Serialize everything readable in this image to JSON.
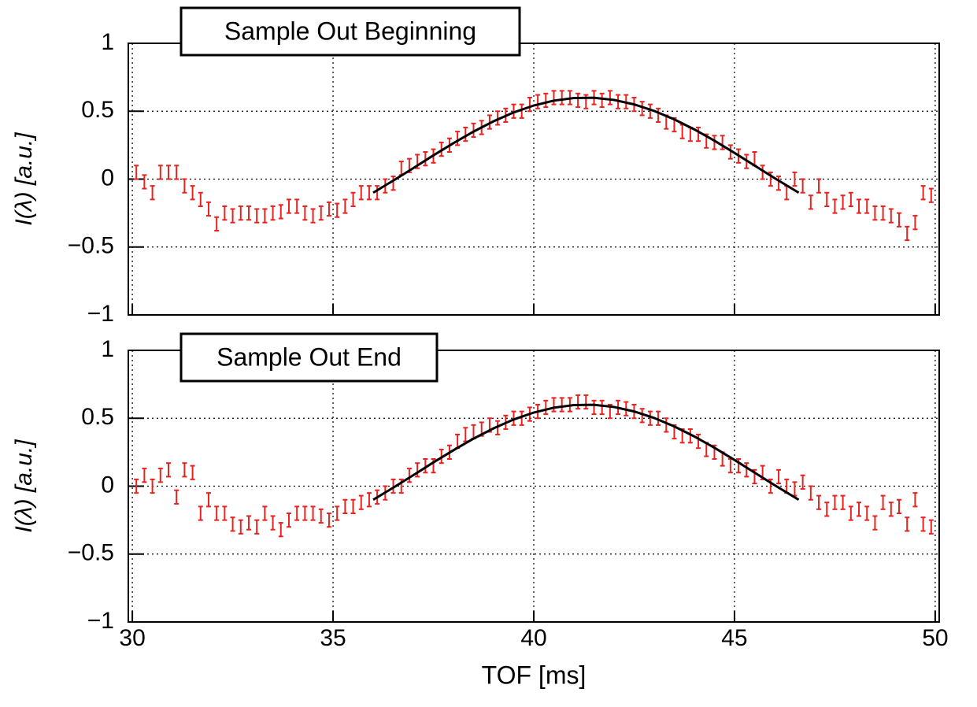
{
  "chart_data": [
    {
      "type": "scatter",
      "title": "Sample Out Beginning",
      "ylabel": "I(λ)  [a.u.]",
      "xlim": [
        29.9,
        50.1
      ],
      "ylim": [
        -1,
        1
      ],
      "xticks": [
        30,
        35,
        40,
        45,
        50
      ],
      "yticks": [
        {
          "value": -1,
          "label": "−1"
        },
        {
          "value": -0.5,
          "label": "−0.5"
        },
        0,
        0.5,
        1
      ],
      "grid": true,
      "series": [
        {
          "style": "errorbar",
          "color": "#e8231f",
          "error": 0.05,
          "x": [
            30.1,
            30.3,
            30.5,
            30.7,
            30.9,
            31.1,
            31.3,
            31.5,
            31.7,
            31.9,
            32.1,
            32.3,
            32.5,
            32.7,
            32.9,
            33.1,
            33.3,
            33.5,
            33.7,
            33.9,
            34.1,
            34.3,
            34.5,
            34.7,
            34.9,
            35.1,
            35.3,
            35.5,
            35.7,
            35.9,
            36.1,
            36.3,
            36.5,
            36.7,
            36.9,
            37.1,
            37.3,
            37.5,
            37.7,
            37.9,
            38.1,
            38.3,
            38.5,
            38.7,
            38.9,
            39.1,
            39.3,
            39.5,
            39.7,
            39.9,
            40.1,
            40.3,
            40.5,
            40.7,
            40.9,
            41.1,
            41.3,
            41.5,
            41.7,
            41.9,
            42.1,
            42.3,
            42.5,
            42.7,
            42.9,
            43.1,
            43.3,
            43.5,
            43.7,
            43.9,
            44.1,
            44.3,
            44.5,
            44.7,
            44.9,
            45.1,
            45.3,
            45.5,
            45.7,
            45.9,
            46.1,
            46.3,
            46.5,
            46.7,
            46.9,
            47.1,
            47.3,
            47.5,
            47.7,
            47.9,
            48.1,
            48.3,
            48.5,
            48.7,
            48.9,
            49.1,
            49.3,
            49.5,
            49.7,
            49.9
          ],
          "values": [
            0.05,
            -0.02,
            -0.1,
            0.05,
            0.05,
            0.05,
            -0.05,
            -0.1,
            -0.15,
            -0.22,
            -0.33,
            -0.25,
            -0.27,
            -0.25,
            -0.25,
            -0.27,
            -0.27,
            -0.25,
            -0.24,
            -0.2,
            -0.2,
            -0.25,
            -0.27,
            -0.25,
            -0.22,
            -0.23,
            -0.2,
            -0.15,
            -0.1,
            -0.1,
            -0.1,
            -0.05,
            -0.03,
            0.08,
            0.1,
            0.13,
            0.15,
            0.17,
            0.22,
            0.25,
            0.3,
            0.33,
            0.36,
            0.38,
            0.42,
            0.45,
            0.47,
            0.5,
            0.5,
            0.55,
            0.57,
            0.58,
            0.6,
            0.6,
            0.6,
            0.58,
            0.57,
            0.6,
            0.58,
            0.6,
            0.57,
            0.57,
            0.55,
            0.52,
            0.5,
            0.47,
            0.42,
            0.4,
            0.35,
            0.33,
            0.33,
            0.28,
            0.27,
            0.27,
            0.2,
            0.17,
            0.13,
            0.15,
            0.05,
            0.0,
            -0.03,
            -0.1,
            0.0,
            -0.05,
            -0.17,
            -0.05,
            -0.15,
            -0.2,
            -0.17,
            -0.15,
            -0.2,
            -0.2,
            -0.25,
            -0.25,
            -0.27,
            -0.3,
            -0.4,
            -0.32,
            -0.1,
            -0.12
          ]
        },
        {
          "style": "line",
          "color": "#000000",
          "x": [
            36,
            36.5,
            37,
            37.5,
            38,
            38.5,
            39,
            39.5,
            40,
            40.5,
            41,
            41.5,
            42,
            42.5,
            43,
            43.5,
            44,
            44.5,
            45,
            45.5,
            46,
            46.6
          ],
          "values": [
            -0.1,
            -0.011,
            0.081,
            0.175,
            0.265,
            0.35,
            0.426,
            0.491,
            0.542,
            0.578,
            0.597,
            0.599,
            0.583,
            0.55,
            0.502,
            0.44,
            0.366,
            0.283,
            0.193,
            0.1,
            0.007,
            -0.1
          ]
        }
      ]
    },
    {
      "type": "scatter",
      "title": "Sample Out End",
      "ylabel": "I(λ)  [a.u.]",
      "xlabel": "TOF [ms]",
      "xlim": [
        29.9,
        50.1
      ],
      "ylim": [
        -1,
        1
      ],
      "xticks": [
        30,
        35,
        40,
        45,
        50
      ],
      "xtick_labels": true,
      "yticks": [
        {
          "value": -1,
          "label": "−1"
        },
        {
          "value": -0.5,
          "label": "−0.5"
        },
        0,
        0.5,
        1
      ],
      "grid": true,
      "series": [
        {
          "style": "errorbar",
          "color": "#e8231f",
          "error": 0.05,
          "x": [
            30.1,
            30.3,
            30.5,
            30.7,
            30.9,
            31.1,
            31.3,
            31.5,
            31.7,
            31.9,
            32.1,
            32.3,
            32.5,
            32.7,
            32.9,
            33.1,
            33.3,
            33.5,
            33.7,
            33.9,
            34.1,
            34.3,
            34.5,
            34.7,
            34.9,
            35.1,
            35.3,
            35.5,
            35.7,
            35.9,
            36.1,
            36.3,
            36.5,
            36.7,
            36.9,
            37.1,
            37.3,
            37.5,
            37.7,
            37.9,
            38.1,
            38.3,
            38.5,
            38.7,
            38.9,
            39.1,
            39.3,
            39.5,
            39.7,
            39.9,
            40.1,
            40.3,
            40.5,
            40.7,
            40.9,
            41.1,
            41.3,
            41.5,
            41.7,
            41.9,
            42.1,
            42.3,
            42.5,
            42.7,
            42.9,
            43.1,
            43.3,
            43.5,
            43.7,
            43.9,
            44.1,
            44.3,
            44.5,
            44.7,
            44.9,
            45.1,
            45.3,
            45.5,
            45.7,
            45.9,
            46.1,
            46.3,
            46.5,
            46.7,
            46.9,
            47.1,
            47.3,
            47.5,
            47.7,
            47.9,
            48.1,
            48.3,
            48.5,
            48.7,
            48.9,
            49.1,
            49.3,
            49.5,
            49.7,
            49.9
          ],
          "values": [
            0.0,
            0.08,
            0.0,
            0.08,
            0.12,
            -0.08,
            0.12,
            0.1,
            -0.2,
            -0.1,
            -0.2,
            -0.2,
            -0.28,
            -0.3,
            -0.27,
            -0.3,
            -0.2,
            -0.27,
            -0.32,
            -0.25,
            -0.2,
            -0.2,
            -0.2,
            -0.22,
            -0.25,
            -0.2,
            -0.15,
            -0.15,
            -0.12,
            -0.1,
            -0.08,
            -0.05,
            0.0,
            0.0,
            0.08,
            0.12,
            0.15,
            0.15,
            0.22,
            0.25,
            0.33,
            0.38,
            0.4,
            0.42,
            0.45,
            0.43,
            0.47,
            0.5,
            0.5,
            0.53,
            0.55,
            0.58,
            0.6,
            0.6,
            0.6,
            0.62,
            0.62,
            0.58,
            0.58,
            0.55,
            0.58,
            0.57,
            0.55,
            0.52,
            0.5,
            0.5,
            0.45,
            0.4,
            0.37,
            0.37,
            0.33,
            0.27,
            0.25,
            0.2,
            0.15,
            0.15,
            0.12,
            0.07,
            0.1,
            0.0,
            0.07,
            0.0,
            -0.02,
            0.03,
            -0.05,
            -0.12,
            -0.17,
            -0.12,
            -0.12,
            -0.2,
            -0.17,
            -0.2,
            -0.27,
            -0.12,
            -0.17,
            -0.15,
            -0.28,
            -0.1,
            -0.28,
            -0.3
          ]
        },
        {
          "style": "line",
          "color": "#000000",
          "x": [
            36,
            36.5,
            37,
            37.5,
            38,
            38.5,
            39,
            39.5,
            40,
            40.5,
            41,
            41.5,
            42,
            42.5,
            43,
            43.5,
            44,
            44.5,
            45,
            45.5,
            46,
            46.6
          ],
          "values": [
            -0.1,
            -0.011,
            0.081,
            0.175,
            0.265,
            0.35,
            0.426,
            0.491,
            0.542,
            0.578,
            0.597,
            0.599,
            0.583,
            0.55,
            0.502,
            0.44,
            0.366,
            0.283,
            0.193,
            0.1,
            0.007,
            -0.1
          ]
        }
      ]
    }
  ]
}
